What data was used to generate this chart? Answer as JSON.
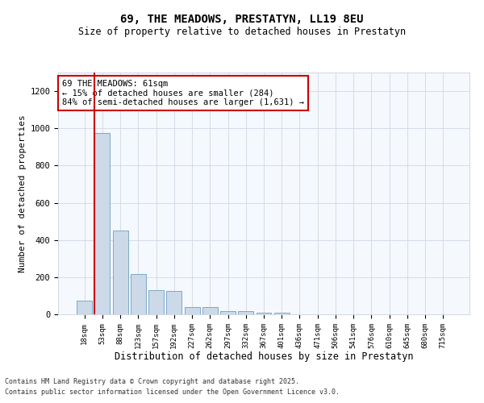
{
  "title1": "69, THE MEADOWS, PRESTATYN, LL19 8EU",
  "title2": "Size of property relative to detached houses in Prestatyn",
  "xlabel": "Distribution of detached houses by size in Prestatyn",
  "ylabel": "Number of detached properties",
  "categories": [
    "18sqm",
    "53sqm",
    "88sqm",
    "123sqm",
    "157sqm",
    "192sqm",
    "227sqm",
    "262sqm",
    "297sqm",
    "332sqm",
    "367sqm",
    "401sqm",
    "436sqm",
    "471sqm",
    "506sqm",
    "541sqm",
    "576sqm",
    "610sqm",
    "645sqm",
    "680sqm",
    "715sqm"
  ],
  "values": [
    75,
    975,
    450,
    215,
    130,
    125,
    38,
    38,
    18,
    18,
    10,
    7,
    2,
    0,
    0,
    0,
    0,
    0,
    0,
    0,
    0
  ],
  "bar_color": "#ccd9e8",
  "bar_edge_color": "#7aaac8",
  "vline_color": "#cc0000",
  "annotation_text": "69 THE MEADOWS: 61sqm\n← 15% of detached houses are smaller (284)\n84% of semi-detached houses are larger (1,631) →",
  "annotation_box_color": "white",
  "annotation_box_edge_color": "#cc0000",
  "ylim": [
    0,
    1300
  ],
  "yticks": [
    0,
    200,
    400,
    600,
    800,
    1000,
    1200
  ],
  "footer1": "Contains HM Land Registry data © Crown copyright and database right 2025.",
  "footer2": "Contains public sector information licensed under the Open Government Licence v3.0.",
  "bg_color": "#f5f8fc",
  "grid_color": "#d0d8e4"
}
